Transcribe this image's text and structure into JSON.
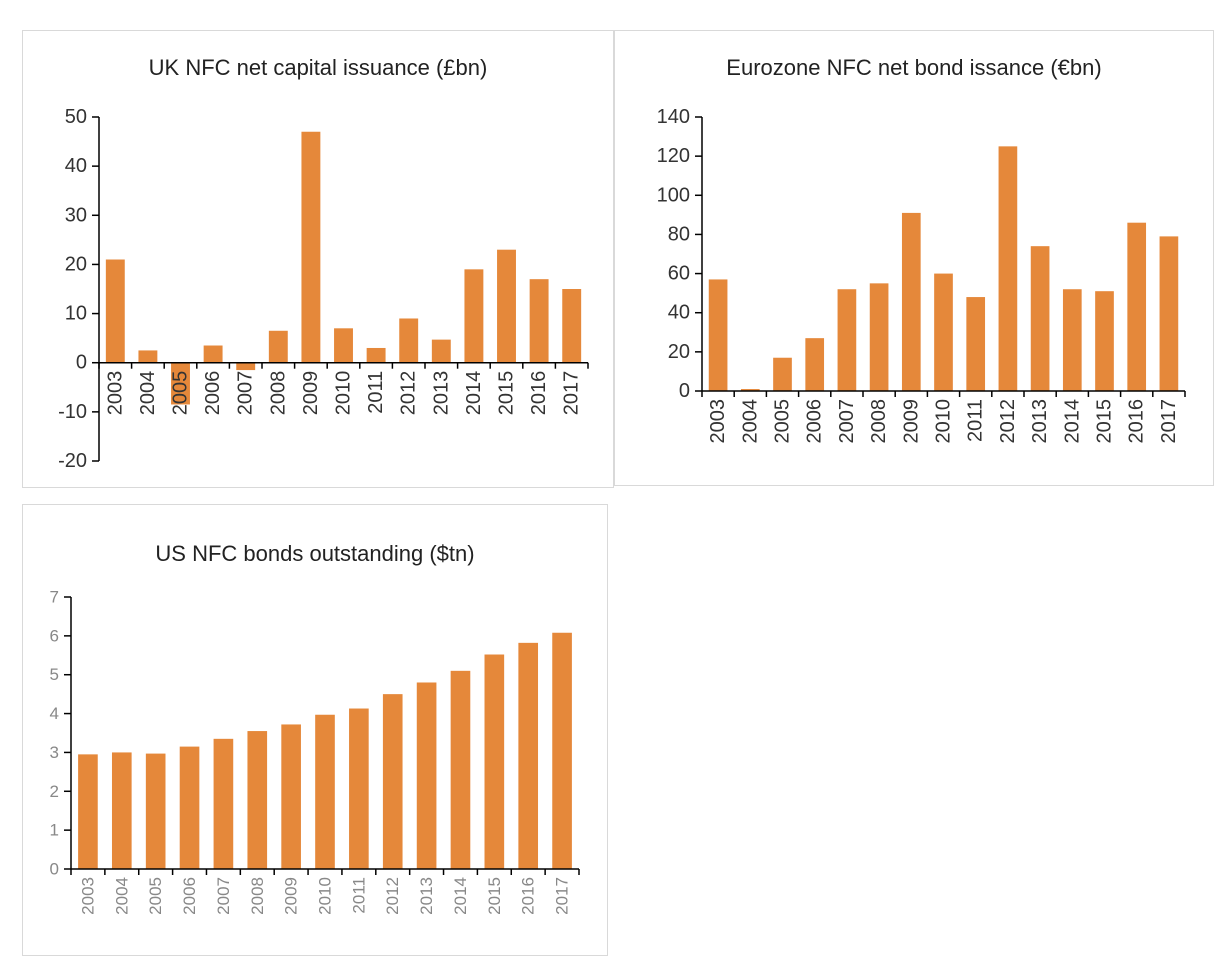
{
  "colors": {
    "bar": "#E5883A",
    "axis": "#000000",
    "tick_dark": "#333333",
    "tick_light": "#888888"
  },
  "chart_data": [
    {
      "type": "bar",
      "title": "UK NFC net capital issuance (£bn)",
      "xlabel": "",
      "ylabel": "",
      "categories": [
        "2003",
        "2004",
        "2005",
        "2006",
        "2007",
        "2008",
        "2009",
        "2010",
        "2011",
        "2012",
        "2013",
        "2014",
        "2015",
        "2016",
        "2017"
      ],
      "values": [
        21,
        2.5,
        -8.5,
        3.5,
        -1.5,
        6.5,
        47,
        7,
        3,
        9,
        4.7,
        19,
        23,
        17,
        15
      ],
      "ylim": [
        -20,
        50
      ],
      "yticks": [
        -20,
        -10,
        0,
        10,
        20,
        30,
        40,
        50
      ],
      "grid": false,
      "legend": false
    },
    {
      "type": "bar",
      "title": "Eurozone NFC net bond issance (€bn)",
      "xlabel": "",
      "ylabel": "",
      "categories": [
        "2003",
        "2004",
        "2005",
        "2006",
        "2007",
        "2008",
        "2009",
        "2010",
        "2011",
        "2012",
        "2013",
        "2014",
        "2015",
        "2016",
        "2017"
      ],
      "values": [
        57,
        1,
        17,
        27,
        52,
        55,
        91,
        60,
        48,
        125,
        74,
        52,
        51,
        86,
        79
      ],
      "ylim": [
        0,
        140
      ],
      "yticks": [
        0,
        20,
        40,
        60,
        80,
        100,
        120,
        140
      ],
      "grid": false,
      "legend": false
    },
    {
      "type": "bar",
      "title": "US NFC bonds outstanding ($tn)",
      "xlabel": "",
      "ylabel": "",
      "categories": [
        "2003",
        "2004",
        "2005",
        "2006",
        "2007",
        "2008",
        "2009",
        "2010",
        "2011",
        "2012",
        "2013",
        "2014",
        "2015",
        "2016",
        "2017"
      ],
      "values": [
        2.95,
        3.0,
        2.97,
        3.15,
        3.35,
        3.55,
        3.72,
        3.97,
        4.13,
        4.5,
        4.8,
        5.1,
        5.52,
        5.82,
        6.08
      ],
      "ylim": [
        0,
        7
      ],
      "yticks": [
        0,
        1,
        2,
        3,
        4,
        5,
        6,
        7
      ],
      "grid": false,
      "legend": false
    }
  ]
}
